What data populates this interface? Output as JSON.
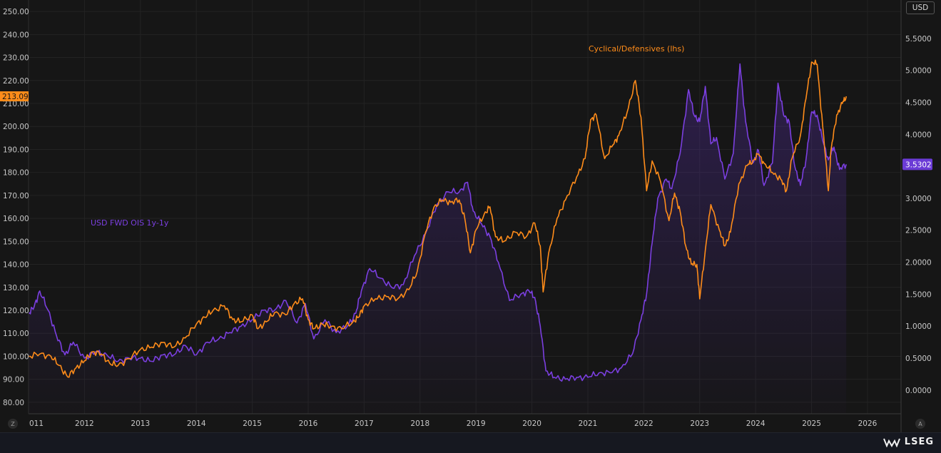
{
  "currency": "USD",
  "brand": "LSEG",
  "corner_left": "Z",
  "corner_right": "A",
  "chart_data": {
    "type": "line",
    "x_ticks": [
      "011",
      "2012",
      "2013",
      "2014",
      "2015",
      "2016",
      "2017",
      "2018",
      "2019",
      "2020",
      "2021",
      "2022",
      "2023",
      "2024",
      "2025",
      "2026"
    ],
    "x_range": [
      2011.0,
      2026.6
    ],
    "left_axis": {
      "ticks": [
        "80.00",
        "90.00",
        "100.00",
        "110.00",
        "120.00",
        "130.00",
        "140.00",
        "150.00",
        "160.00",
        "170.00",
        "180.00",
        "190.00",
        "200.00",
        "210.00",
        "220.00",
        "230.00",
        "240.00",
        "250.00"
      ],
      "range": [
        75,
        255
      ],
      "last_value_label": "213.09",
      "last_value": 213.09
    },
    "right_axis": {
      "ticks": [
        "0.0000",
        "0.5000",
        "1.0000",
        "1.5000",
        "2.0000",
        "2.5000",
        "3.0000",
        "3.5000",
        "4.0000",
        "4.5000",
        "5.0000",
        "5.5000"
      ],
      "range": [
        -0.37,
        6.1
      ],
      "last_value_label": "3.5302",
      "last_value": 3.5302
    },
    "series": [
      {
        "name": "Cyclical/Defensives (lhs)",
        "axis": "left",
        "color": "#ff8c1a",
        "points": [
          [
            2011.0,
            100
          ],
          [
            2011.2,
            101
          ],
          [
            2011.4,
            100
          ],
          [
            2011.55,
            96
          ],
          [
            2011.7,
            91
          ],
          [
            2011.85,
            95
          ],
          [
            2012.0,
            98
          ],
          [
            2012.15,
            102
          ],
          [
            2012.3,
            101
          ],
          [
            2012.45,
            97
          ],
          [
            2012.6,
            96
          ],
          [
            2012.8,
            99
          ],
          [
            2013.0,
            103
          ],
          [
            2013.2,
            104
          ],
          [
            2013.4,
            106
          ],
          [
            2013.6,
            104
          ],
          [
            2013.8,
            108
          ],
          [
            2014.0,
            114
          ],
          [
            2014.15,
            117
          ],
          [
            2014.3,
            120
          ],
          [
            2014.5,
            122
          ],
          [
            2014.65,
            116
          ],
          [
            2014.8,
            115
          ],
          [
            2015.0,
            118
          ],
          [
            2015.1,
            112
          ],
          [
            2015.25,
            115
          ],
          [
            2015.4,
            119
          ],
          [
            2015.6,
            118
          ],
          [
            2015.75,
            123
          ],
          [
            2015.9,
            125
          ],
          [
            2016.0,
            116
          ],
          [
            2016.1,
            112
          ],
          [
            2016.25,
            114
          ],
          [
            2016.4,
            113
          ],
          [
            2016.6,
            112
          ],
          [
            2016.8,
            115
          ],
          [
            2016.9,
            117
          ],
          [
            2017.0,
            122
          ],
          [
            2017.2,
            125
          ],
          [
            2017.4,
            126
          ],
          [
            2017.6,
            125
          ],
          [
            2017.8,
            129
          ],
          [
            2017.95,
            137
          ],
          [
            2018.1,
            154
          ],
          [
            2018.25,
            165
          ],
          [
            2018.4,
            168
          ],
          [
            2018.55,
            167
          ],
          [
            2018.7,
            168
          ],
          [
            2018.8,
            160
          ],
          [
            2018.9,
            145
          ],
          [
            2019.0,
            155
          ],
          [
            2019.15,
            162
          ],
          [
            2019.25,
            165
          ],
          [
            2019.35,
            152
          ],
          [
            2019.5,
            150
          ],
          [
            2019.7,
            154
          ],
          [
            2019.9,
            152
          ],
          [
            2020.05,
            158
          ],
          [
            2020.15,
            148
          ],
          [
            2020.2,
            128
          ],
          [
            2020.3,
            145
          ],
          [
            2020.45,
            160
          ],
          [
            2020.6,
            168
          ],
          [
            2020.8,
            178
          ],
          [
            2020.95,
            186
          ],
          [
            2021.05,
            203
          ],
          [
            2021.15,
            205
          ],
          [
            2021.3,
            186
          ],
          [
            2021.45,
            192
          ],
          [
            2021.55,
            196
          ],
          [
            2021.7,
            206
          ],
          [
            2021.85,
            220
          ],
          [
            2021.95,
            204
          ],
          [
            2022.05,
            172
          ],
          [
            2022.15,
            185
          ],
          [
            2022.3,
            176
          ],
          [
            2022.45,
            159
          ],
          [
            2022.55,
            171
          ],
          [
            2022.65,
            163
          ],
          [
            2022.75,
            148
          ],
          [
            2022.85,
            140
          ],
          [
            2022.95,
            140
          ],
          [
            2023.0,
            125
          ],
          [
            2023.1,
            146
          ],
          [
            2023.2,
            166
          ],
          [
            2023.35,
            155
          ],
          [
            2023.45,
            148
          ],
          [
            2023.55,
            154
          ],
          [
            2023.7,
            175
          ],
          [
            2023.85,
            183
          ],
          [
            2023.95,
            185
          ],
          [
            2024.05,
            188
          ],
          [
            2024.15,
            184
          ],
          [
            2024.3,
            180
          ],
          [
            2024.45,
            177
          ],
          [
            2024.55,
            172
          ],
          [
            2024.65,
            186
          ],
          [
            2024.8,
            196
          ],
          [
            2024.9,
            212
          ],
          [
            2025.0,
            228
          ],
          [
            2025.1,
            227
          ],
          [
            2025.2,
            200
          ],
          [
            2025.3,
            172
          ],
          [
            2025.35,
            190
          ],
          [
            2025.45,
            205
          ],
          [
            2025.55,
            210
          ],
          [
            2025.62,
            213.09
          ]
        ]
      },
      {
        "name": "USD FWD OIS 1y-1y",
        "axis": "right",
        "color": "#7b3fe0",
        "points": [
          [
            2011.0,
            1.2
          ],
          [
            2011.1,
            1.3
          ],
          [
            2011.2,
            1.55
          ],
          [
            2011.35,
            1.25
          ],
          [
            2011.5,
            0.85
          ],
          [
            2011.65,
            0.55
          ],
          [
            2011.8,
            0.75
          ],
          [
            2012.0,
            0.5
          ],
          [
            2012.2,
            0.6
          ],
          [
            2012.4,
            0.55
          ],
          [
            2012.6,
            0.45
          ],
          [
            2012.8,
            0.5
          ],
          [
            2013.0,
            0.5
          ],
          [
            2013.2,
            0.45
          ],
          [
            2013.4,
            0.55
          ],
          [
            2013.6,
            0.55
          ],
          [
            2013.8,
            0.7
          ],
          [
            2014.0,
            0.55
          ],
          [
            2014.2,
            0.75
          ],
          [
            2014.4,
            0.8
          ],
          [
            2014.6,
            0.9
          ],
          [
            2014.8,
            1.0
          ],
          [
            2015.0,
            1.1
          ],
          [
            2015.2,
            1.25
          ],
          [
            2015.4,
            1.25
          ],
          [
            2015.6,
            1.4
          ],
          [
            2015.8,
            1.05
          ],
          [
            2015.95,
            1.35
          ],
          [
            2016.1,
            0.8
          ],
          [
            2016.3,
            1.1
          ],
          [
            2016.5,
            0.9
          ],
          [
            2016.7,
            1.0
          ],
          [
            2016.85,
            1.2
          ],
          [
            2016.95,
            1.55
          ],
          [
            2017.1,
            1.9
          ],
          [
            2017.3,
            1.75
          ],
          [
            2017.5,
            1.6
          ],
          [
            2017.7,
            1.65
          ],
          [
            2017.9,
            2.1
          ],
          [
            2018.1,
            2.45
          ],
          [
            2018.3,
            2.9
          ],
          [
            2018.5,
            3.1
          ],
          [
            2018.7,
            3.1
          ],
          [
            2018.85,
            3.25
          ],
          [
            2018.95,
            2.8
          ],
          [
            2019.1,
            2.6
          ],
          [
            2019.25,
            2.4
          ],
          [
            2019.4,
            2.0
          ],
          [
            2019.6,
            1.4
          ],
          [
            2019.8,
            1.5
          ],
          [
            2019.95,
            1.55
          ],
          [
            2020.05,
            1.45
          ],
          [
            2020.15,
            1.0
          ],
          [
            2020.25,
            0.3
          ],
          [
            2020.4,
            0.2
          ],
          [
            2020.6,
            0.17
          ],
          [
            2020.8,
            0.2
          ],
          [
            2021.0,
            0.2
          ],
          [
            2021.2,
            0.27
          ],
          [
            2021.4,
            0.27
          ],
          [
            2021.6,
            0.35
          ],
          [
            2021.8,
            0.57
          ],
          [
            2021.95,
            1.1
          ],
          [
            2022.05,
            1.5
          ],
          [
            2022.15,
            2.3
          ],
          [
            2022.25,
            3.0
          ],
          [
            2022.4,
            3.3
          ],
          [
            2022.5,
            3.15
          ],
          [
            2022.65,
            3.7
          ],
          [
            2022.8,
            4.7
          ],
          [
            2022.9,
            4.3
          ],
          [
            2023.0,
            4.2
          ],
          [
            2023.1,
            4.75
          ],
          [
            2023.2,
            3.85
          ],
          [
            2023.3,
            3.95
          ],
          [
            2023.45,
            3.3
          ],
          [
            2023.6,
            3.7
          ],
          [
            2023.72,
            5.1
          ],
          [
            2023.82,
            4.2
          ],
          [
            2023.95,
            3.55
          ],
          [
            2024.05,
            3.75
          ],
          [
            2024.15,
            3.2
          ],
          [
            2024.3,
            3.55
          ],
          [
            2024.4,
            4.8
          ],
          [
            2024.5,
            4.3
          ],
          [
            2024.6,
            4.2
          ],
          [
            2024.7,
            3.5
          ],
          [
            2024.8,
            3.2
          ],
          [
            2024.9,
            3.6
          ],
          [
            2025.0,
            4.35
          ],
          [
            2025.1,
            4.3
          ],
          [
            2025.2,
            3.9
          ],
          [
            2025.3,
            3.6
          ],
          [
            2025.4,
            3.8
          ],
          [
            2025.5,
            3.45
          ],
          [
            2025.62,
            3.5302
          ]
        ]
      }
    ],
    "annotations": [
      {
        "text": "Cyclical/Defensives (lhs)",
        "color": "#ff8c1a"
      },
      {
        "text": "USD FWD OIS 1y-1y",
        "color": "#7b3fe0"
      }
    ],
    "grid": true,
    "legend": "none"
  }
}
